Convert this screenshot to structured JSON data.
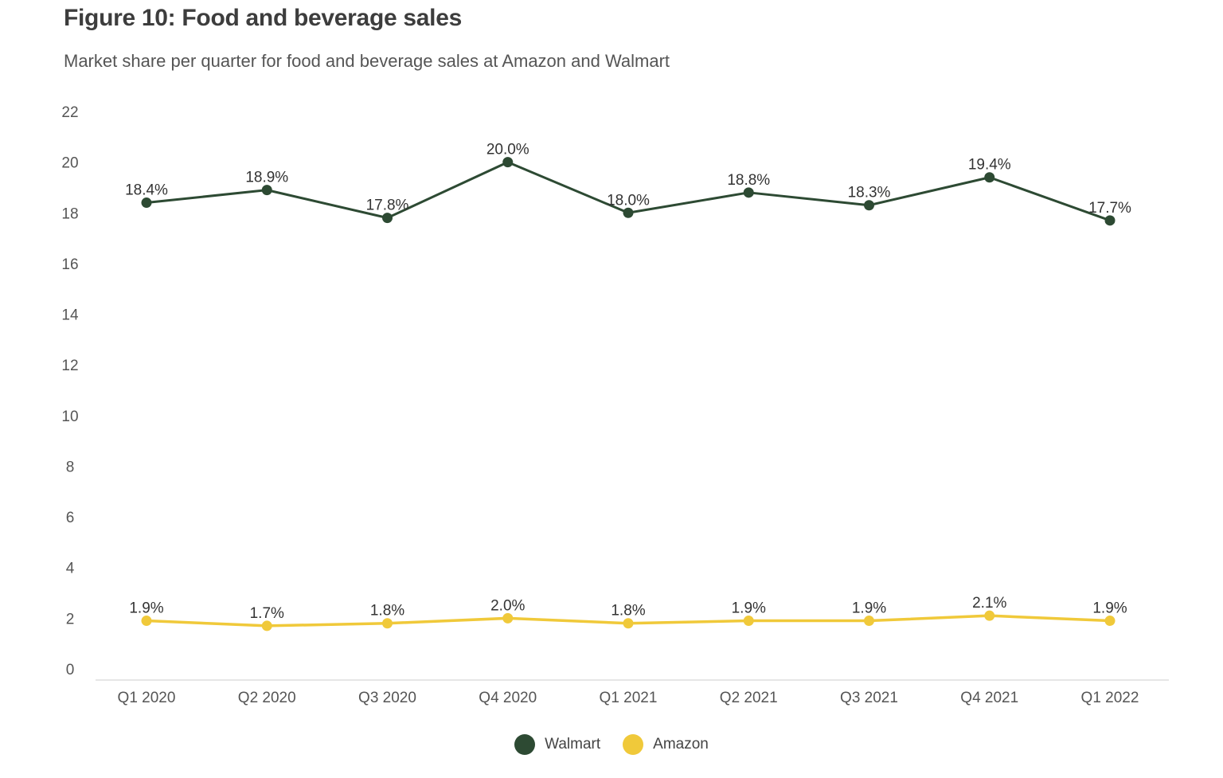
{
  "title": "Figure 10: Food and beverage sales",
  "subtitle": "Market share per quarter for food and beverage sales at Amazon and Walmart",
  "colors": {
    "walmart": "#2d4a33",
    "amazon": "#f0c93a",
    "axis": "#dddddd"
  },
  "chart_data": {
    "type": "line",
    "title": "Figure 10: Food and beverage sales",
    "subtitle": "Market share per quarter for food and beverage sales at Amazon and Walmart",
    "xlabel": "",
    "ylabel": "",
    "categories": [
      "Q1 2020",
      "Q2 2020",
      "Q3 2020",
      "Q4 2020",
      "Q1 2021",
      "Q2 2021",
      "Q3 2021",
      "Q4 2021",
      "Q1 2022"
    ],
    "ylim": [
      0,
      22
    ],
    "yticks": [
      0,
      2,
      4,
      6,
      8,
      10,
      12,
      14,
      16,
      18,
      20,
      22
    ],
    "grid": false,
    "legend_position": "bottom",
    "series": [
      {
        "name": "Walmart",
        "color": "#2d4a33",
        "values": [
          18.4,
          18.9,
          17.8,
          20.0,
          18.0,
          18.8,
          18.3,
          19.4,
          17.7
        ],
        "labels": [
          "18.4%",
          "18.9%",
          "17.8%",
          "20.0%",
          "18.0%",
          "18.8%",
          "18.3%",
          "19.4%",
          "17.7%"
        ]
      },
      {
        "name": "Amazon",
        "color": "#f0c93a",
        "values": [
          1.9,
          1.7,
          1.8,
          2.0,
          1.8,
          1.9,
          1.9,
          2.1,
          1.9
        ],
        "labels": [
          "1.9%",
          "1.7%",
          "1.8%",
          "2.0%",
          "1.8%",
          "1.9%",
          "1.9%",
          "2.1%",
          "1.9%"
        ]
      }
    ]
  }
}
